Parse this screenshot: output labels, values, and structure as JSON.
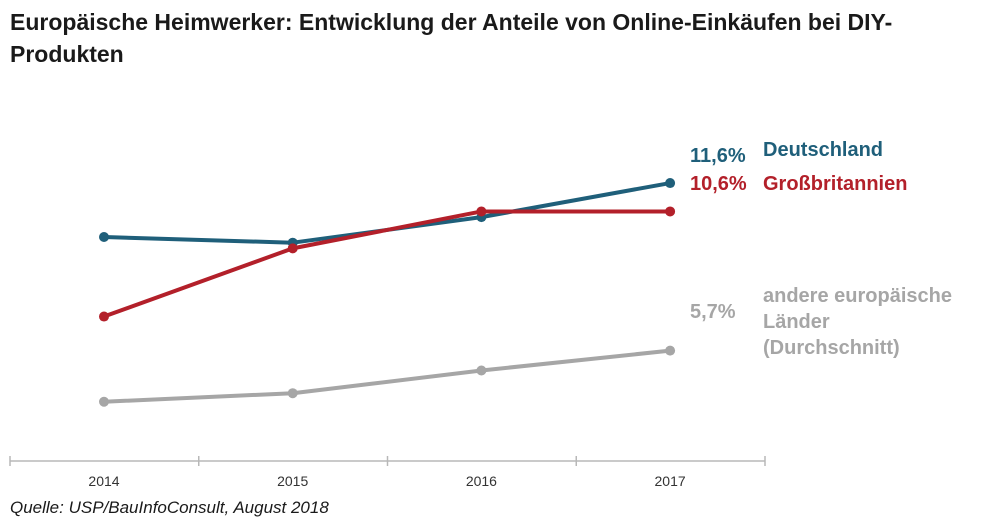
{
  "title": "Europäische Heimwerker: Entwicklung der Anteile von Online-Einkäufen bei DIY-Produkten",
  "source": "Quelle: USP/BauInfoConsult, August 2018",
  "chart_data": {
    "type": "line",
    "title": "Europäische Heimwerker: Entwicklung der Anteile von Online-Einkäufen bei DIY-Produkten",
    "xlabel": "",
    "ylabel": "",
    "categories": [
      "2014",
      "2015",
      "2016",
      "2017"
    ],
    "ylim": [
      0,
      16
    ],
    "grid": false,
    "legend": "direct labels at line ends (right)",
    "series": [
      {
        "name": "Deutschland",
        "values": [
          9.7,
          9.5,
          10.4,
          11.6
        ],
        "color": "#1f5f7a",
        "end_label": "11,6%",
        "label_lines": [
          "Deutschland"
        ]
      },
      {
        "name": "Großbritannien",
        "values": [
          6.9,
          9.3,
          10.6,
          10.6
        ],
        "color": "#b3202a",
        "end_label": "10,6%",
        "label_lines": [
          "Großbritannien"
        ]
      },
      {
        "name": "andere europäische Länder (Durchschnitt)",
        "values": [
          3.9,
          4.2,
          5.0,
          5.7
        ],
        "color": "#a6a6a6",
        "end_label": "5,7%",
        "label_lines": [
          "andere europäische",
          "Länder",
          "(Durchschnitt)"
        ]
      }
    ]
  }
}
